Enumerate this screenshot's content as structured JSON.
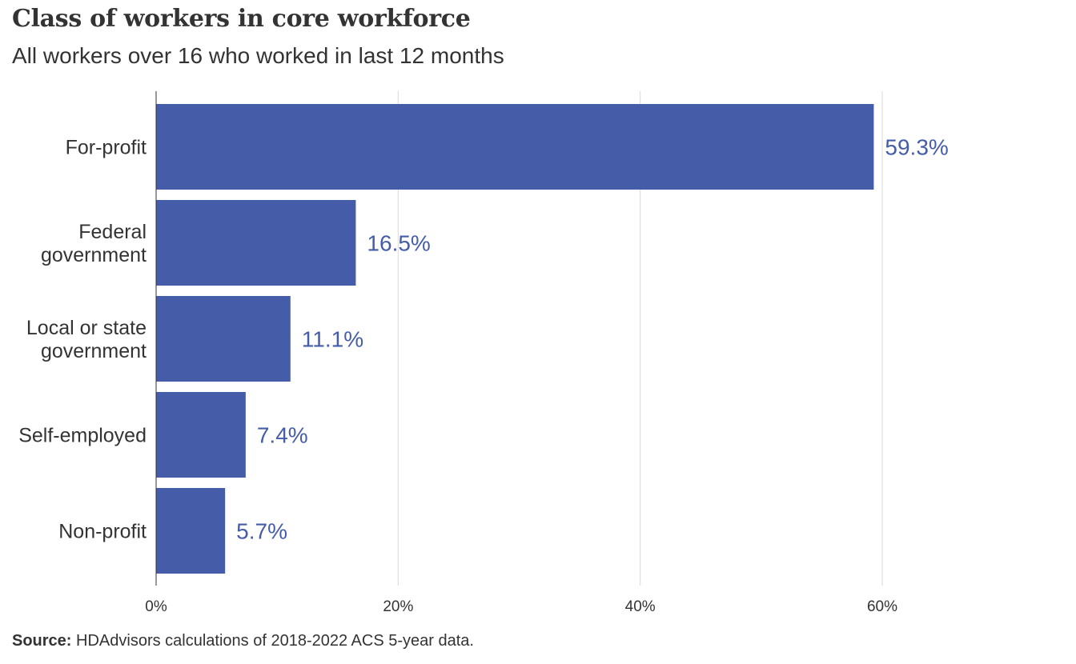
{
  "chart_data": {
    "type": "bar",
    "orientation": "horizontal",
    "title": "Class of workers in core workforce",
    "subtitle": "All workers over 16 who worked in last 12 months",
    "categories": [
      [
        "For-profit"
      ],
      [
        "Federal",
        "government"
      ],
      [
        "Local or state",
        "government"
      ],
      [
        "Self-employed"
      ],
      [
        "Non-profit"
      ]
    ],
    "values": [
      59.3,
      16.5,
      11.1,
      7.4,
      5.7
    ],
    "value_labels": [
      "59.3%",
      "16.5%",
      "11.1%",
      "7.4%",
      "5.7%"
    ],
    "xlim": [
      0,
      60
    ],
    "x_ticks": [
      0,
      20,
      40,
      60
    ],
    "x_tick_labels": [
      "0%",
      "20%",
      "40%",
      "60%"
    ],
    "grid": "vertical",
    "colors": {
      "bar": "#455ca8",
      "value_label": "#455ca8",
      "grid": "#d9d9d9",
      "text": "#333333"
    }
  },
  "footer": {
    "source_label": "Source:",
    "source_text": "HDAdvisors calculations of 2018-2022 ACS 5-year data."
  }
}
